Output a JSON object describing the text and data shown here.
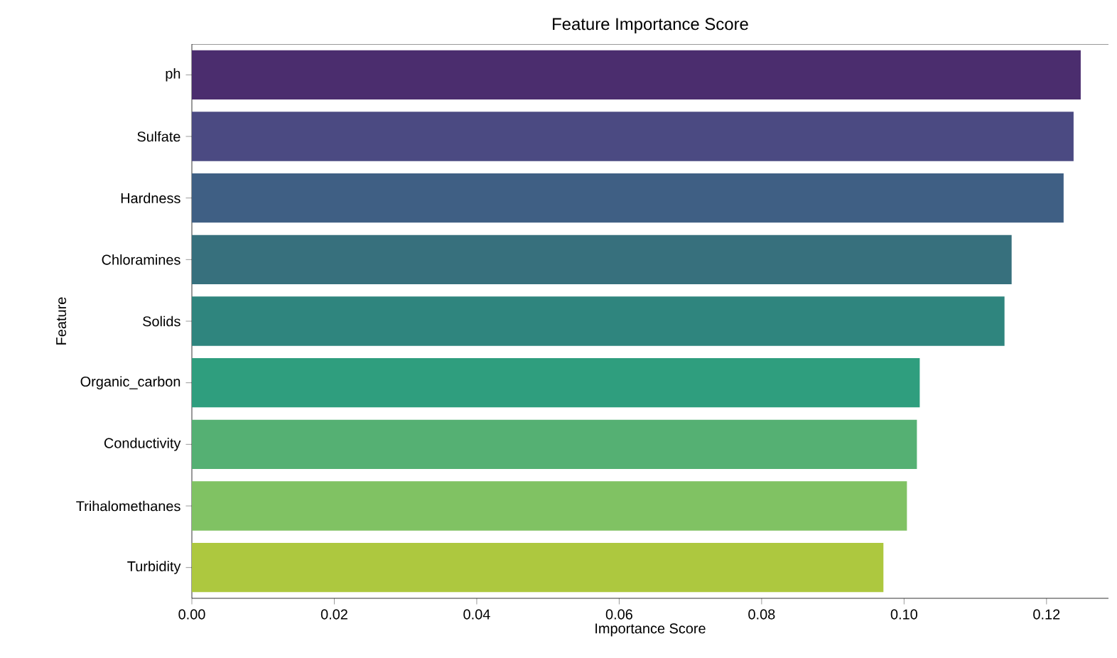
{
  "chart_data": {
    "type": "bar",
    "orientation": "horizontal",
    "title": "Feature Importance Score",
    "xlabel": "Importance Score",
    "ylabel": "Feature",
    "categories": [
      "ph",
      "Sulfate",
      "Hardness",
      "Chloramines",
      "Solids",
      "Organic_carbon",
      "Conductivity",
      "Trihalomethanes",
      "Turbidity"
    ],
    "values": [
      0.1248,
      0.1238,
      0.1224,
      0.1151,
      0.1141,
      0.1022,
      0.1018,
      0.1004,
      0.0971
    ],
    "colors": [
      "#4b2d6e",
      "#4b4a82",
      "#3f5f84",
      "#37707d",
      "#2f857e",
      "#2f9e7e",
      "#55b073",
      "#80c263",
      "#adc83f"
    ],
    "xlim": [
      0,
      0.1287
    ],
    "xticks": [
      {
        "value": 0,
        "label": "0.00"
      },
      {
        "value": 0.02,
        "label": "0.02"
      },
      {
        "value": 0.04,
        "label": "0.04"
      },
      {
        "value": 0.06,
        "label": "0.06"
      },
      {
        "value": 0.08,
        "label": "0.08"
      },
      {
        "value": 0.1,
        "label": "0.10"
      },
      {
        "value": 0.12,
        "label": "0.12"
      }
    ],
    "grid": false
  }
}
